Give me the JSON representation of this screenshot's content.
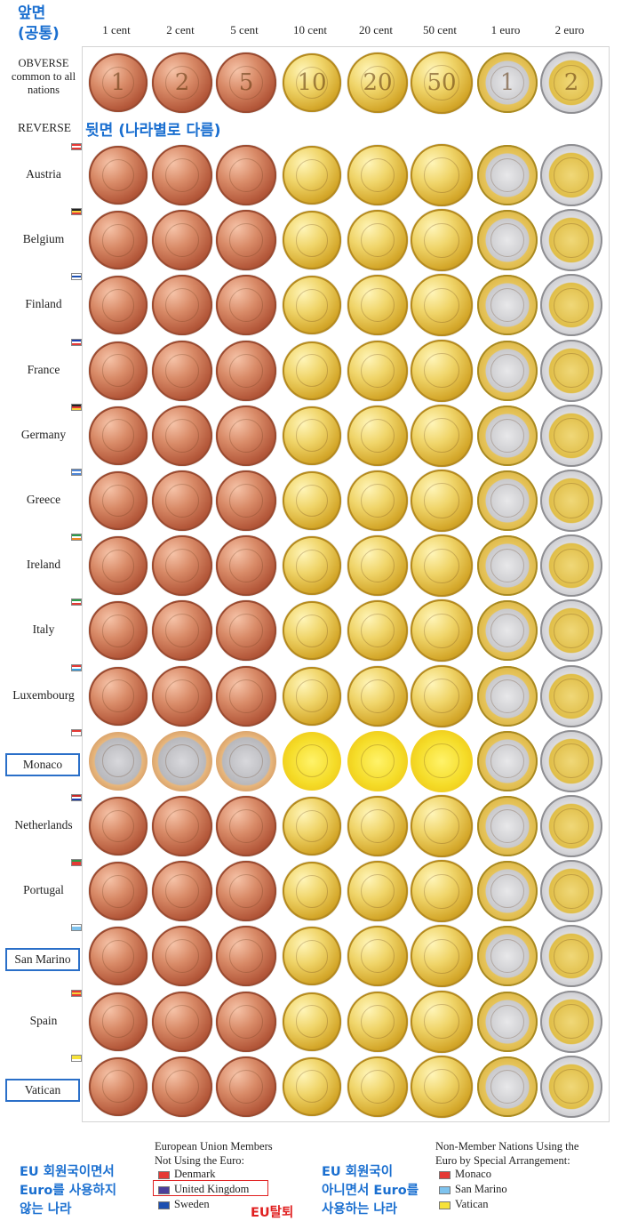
{
  "header": {
    "kr_front": "앞면\n(공통)"
  },
  "columns": [
    "1 cent",
    "2 cent",
    "5 cent",
    "10 cent",
    "20 cent",
    "50 cent",
    "1 euro",
    "2 euro"
  ],
  "obverse": {
    "label": "OBVERSE common to all nations",
    "numerals": [
      "1",
      "2",
      "5",
      "10",
      "20",
      "50",
      "1",
      "2"
    ]
  },
  "reverse": {
    "label": "REVERSE",
    "kr": "뒷면 (나라별로 다름)"
  },
  "countries": [
    {
      "name": "Austria",
      "flag": [
        "#e53935",
        "#ffffff",
        "#e53935"
      ],
      "boxed": false
    },
    {
      "name": "Belgium",
      "flag": [
        "#222222",
        "#f6d23a",
        "#e53935"
      ],
      "boxed": false
    },
    {
      "name": "Finland",
      "flag": [
        "#ffffff",
        "#1d4fb0",
        "#ffffff"
      ],
      "boxed": false
    },
    {
      "name": "France",
      "flag": [
        "#1d3fb0",
        "#ffffff",
        "#e53935"
      ],
      "boxed": false
    },
    {
      "name": "Germany",
      "flag": [
        "#222222",
        "#e53935",
        "#f6d23a"
      ],
      "boxed": false
    },
    {
      "name": "Greece",
      "flag": [
        "#4f86d6",
        "#ffffff",
        "#4f86d6"
      ],
      "boxed": false
    },
    {
      "name": "Ireland",
      "flag": [
        "#2c9c4a",
        "#ffffff",
        "#f08a24"
      ],
      "boxed": false
    },
    {
      "name": "Italy",
      "flag": [
        "#2c9c4a",
        "#ffffff",
        "#e53935"
      ],
      "boxed": false
    },
    {
      "name": "Luxembourg",
      "flag": [
        "#e53935",
        "#ffffff",
        "#3aa0e0"
      ],
      "boxed": false
    },
    {
      "name": "Monaco",
      "flag": [
        "#e53935",
        "#ffffff",
        "#ffffff"
      ],
      "boxed": true
    },
    {
      "name": "Netherlands",
      "flag": [
        "#c62828",
        "#ffffff",
        "#1d3fb0"
      ],
      "boxed": false
    },
    {
      "name": "Portugal",
      "flag": [
        "#2c9c4a",
        "#e53935",
        "#e53935"
      ],
      "boxed": false
    },
    {
      "name": "San Marino",
      "flag": [
        "#ffffff",
        "#7ec3ee",
        "#7ec3ee"
      ],
      "boxed": true
    },
    {
      "name": "Spain",
      "flag": [
        "#e53935",
        "#f6d23a",
        "#e53935"
      ],
      "boxed": false
    },
    {
      "name": "Vatican",
      "flag": [
        "#f6e23a",
        "#f6e23a",
        "#ffffff"
      ],
      "boxed": true
    }
  ],
  "legend": {
    "kr_eu_no_euro": "EU 회원국이면서\nEuro를 사용하지\n않는 나라",
    "eu_title": "European Union Members\nNot Using the Euro:",
    "eu_members": [
      {
        "name": "Denmark",
        "flag": "#e53935"
      },
      {
        "name": "United Kingdom",
        "flag": "#4b3f9a"
      },
      {
        "name": "Sweden",
        "flag": "#1d4fb0"
      }
    ],
    "eu_exit": "EU탈퇴",
    "kr_non_eu_euro": "EU 회원국이\n아니면서 Euro를\n사용하는 나라",
    "non_member_title": "Non-Member Nations Using the\nEuro by Special Arrangement:",
    "non_members": [
      {
        "name": "Monaco",
        "flag": "#e53935"
      },
      {
        "name": "San Marino",
        "flag": "#7ec3ee"
      },
      {
        "name": "Vatican",
        "flag": "#f6e23a"
      }
    ]
  }
}
